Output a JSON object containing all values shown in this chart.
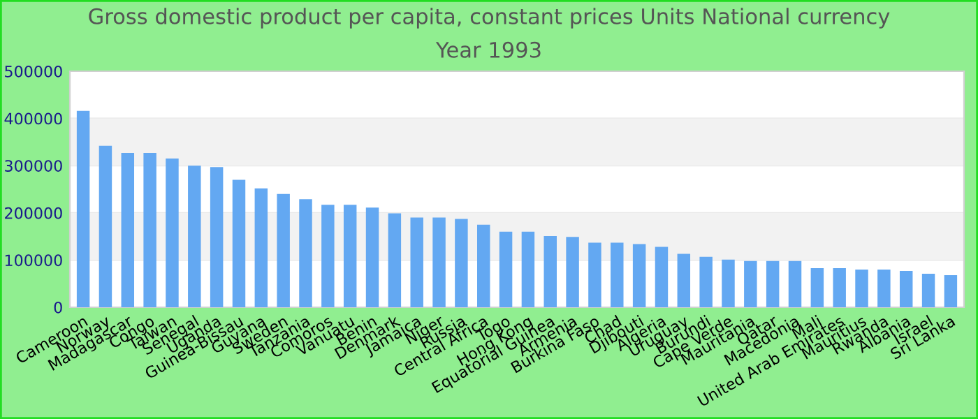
{
  "chart_data": {
    "type": "bar",
    "title": "Gross domestic product per capita, constant prices Units National currency",
    "subtitle": "Year 1993",
    "categories": [
      "Cameroon",
      "Norway",
      "Madagascar",
      "Congo",
      "Taiwan",
      "Senegal",
      "Uganda",
      "Guinea-Bissau",
      "Guyana",
      "Sweden",
      "Tanzania",
      "Comoros",
      "Vanuatu",
      "Benin",
      "Denmark",
      "Jamaica",
      "Niger",
      "Russia",
      "Central Africa",
      "Togo",
      "Hong Kong",
      "Equatorial Guinea",
      "Armenia",
      "Burkina Faso",
      "Chad",
      "Djibouti",
      "Algeria",
      "Uruguay",
      "Burundi",
      "Cape Verde",
      "Mauritania",
      "Qatar",
      "Macedonia",
      "Mali",
      "United Arab Emirates",
      "Mauritius",
      "Rwanda",
      "Albania",
      "Israel",
      "Sri Lanka"
    ],
    "values": [
      416000,
      342000,
      327000,
      327000,
      315000,
      300000,
      297000,
      270000,
      252000,
      240000,
      229000,
      217000,
      217000,
      211000,
      199000,
      190000,
      190000,
      187000,
      175000,
      160000,
      160000,
      151000,
      149000,
      137000,
      137000,
      134000,
      128000,
      113000,
      107000,
      101000,
      98000,
      98000,
      98000,
      83000,
      83000,
      80000,
      80000,
      77000,
      71000,
      68000
    ],
    "color": "#63a8f2",
    "ylim": [
      0,
      500000
    ],
    "yticks": [
      0,
      100000,
      200000,
      300000,
      400000,
      500000
    ],
    "grid": "y"
  }
}
